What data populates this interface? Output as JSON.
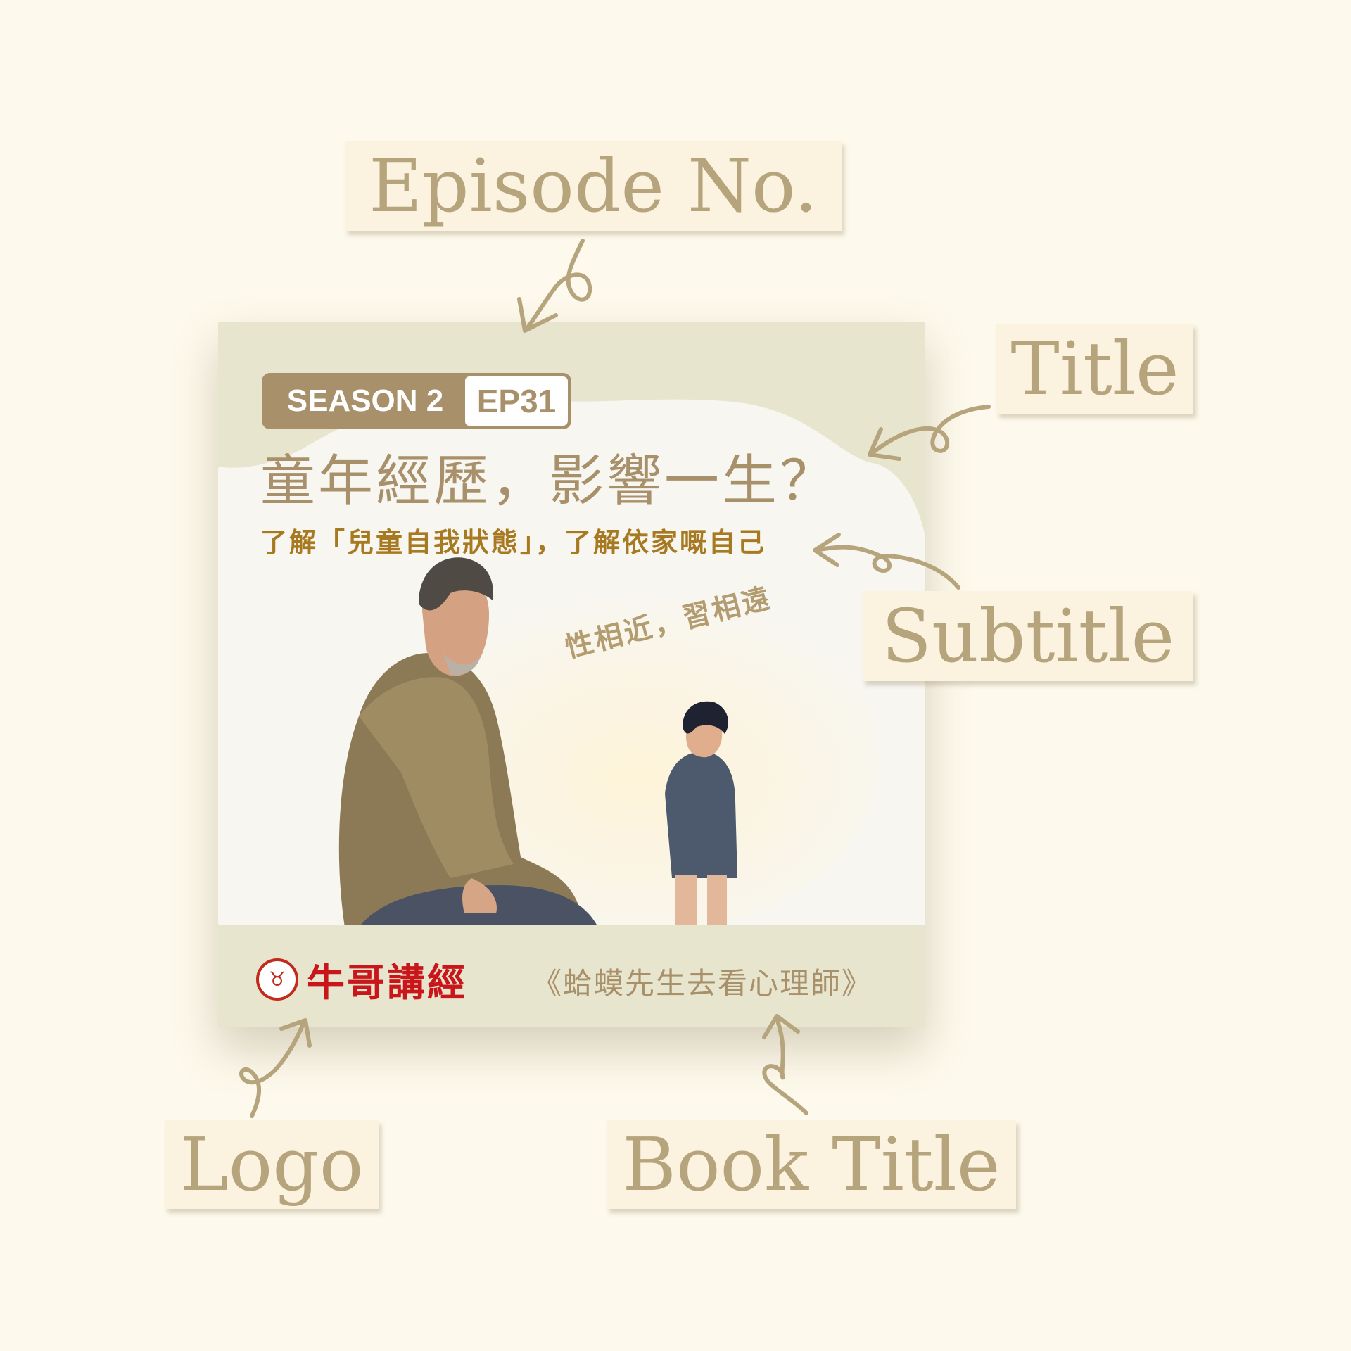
{
  "annotations": {
    "episode_no": "Episode No.",
    "title": "Title",
    "subtitle": "Subtitle",
    "logo": "Logo",
    "book_title": "Book Title"
  },
  "cover": {
    "season": "SEASON 2",
    "episode": "EP31",
    "title": "童年經歷，影響一生？",
    "subtitle": "了解「兒童自我狀態」，了解依家嘅自己",
    "quote": "性相近，習相遠",
    "logo_text": "牛哥講經",
    "book_title": "《蛤蟆先生去看心理師》"
  },
  "colors": {
    "background": "#fdf9ec",
    "annotation_text": "#b5a47c",
    "annotation_box": "#fcf2e0",
    "accent": "#a8916a",
    "subtitle": "#a77a22",
    "logo_red": "#c8161b",
    "footer": "#e8e5cf"
  },
  "icons": {
    "logo_seal": "ox-seal-icon"
  }
}
